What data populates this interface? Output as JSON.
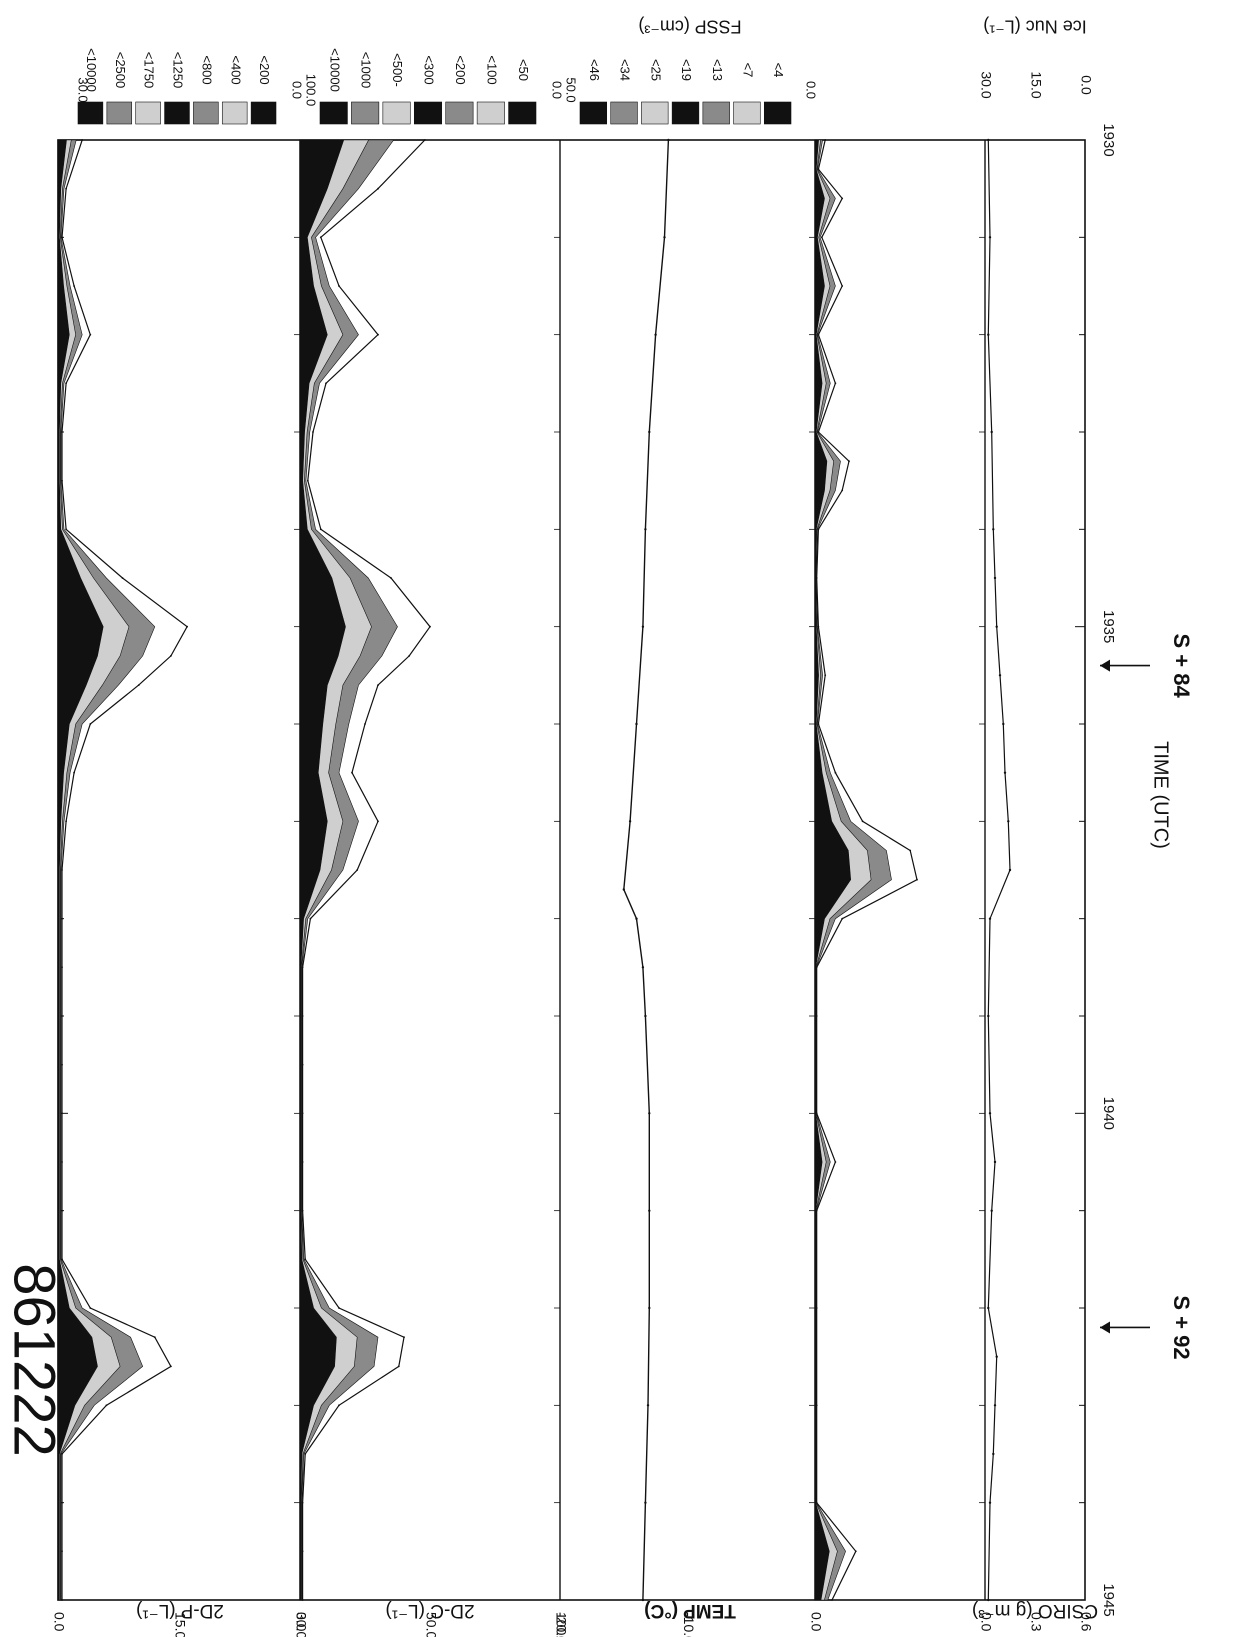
{
  "figure_id": "861222",
  "colors": {
    "ink": "#111111",
    "dark": "#111111",
    "mid": "#8a8a8a",
    "light": "#cfcfcf"
  },
  "chart_data": [
    {
      "type": "area",
      "panel": "2D-P",
      "ylabel": "2D-P (L⁻¹)",
      "ylim": [
        0,
        30
      ],
      "yticks": [
        "30.0",
        "15.0",
        "0.0"
      ],
      "legend": [
        "<10000",
        "<2500",
        "<1750",
        "<1250",
        "<800",
        "<400",
        "<200"
      ],
      "series": [
        {
          "x": [
            1930.0,
            1930.5,
            1931.0,
            1931.5,
            1932.0,
            1932.5,
            1933.0,
            1933.5,
            1934.0,
            1934.5,
            1935.0,
            1935.3,
            1935.6,
            1936.0,
            1936.5,
            1937.0,
            1937.5,
            1938.0,
            1938.5,
            1939.0,
            1939.5,
            1940.0,
            1940.5,
            1941.0,
            1941.5,
            1942.0,
            1942.3,
            1942.6,
            1943.0,
            1943.5,
            1944.0,
            1944.5,
            1945.0
          ],
          "values": [
            3,
            1,
            0.5,
            2,
            4,
            1,
            0.5,
            0.5,
            1,
            8,
            16,
            14,
            10,
            4,
            2,
            1,
            0.5,
            0.5,
            0.5,
            0.5,
            0.5,
            0.5,
            0.5,
            0.5,
            0.5,
            4,
            12,
            14,
            6,
            0.5,
            0.5,
            0.5,
            0.5
          ]
        }
      ]
    },
    {
      "type": "area",
      "panel": "2D-C",
      "ylabel": "2D-C (L⁻¹)",
      "ylim": [
        0,
        100
      ],
      "yticks": [
        "100.0",
        "50.0",
        "0.0"
      ],
      "legend": [
        "<10000",
        "<1000",
        "<500-",
        "<300",
        "<200",
        "<100",
        "<50"
      ],
      "series": [
        {
          "x": [
            1930.0,
            1930.5,
            1931.0,
            1931.5,
            1932.0,
            1932.5,
            1933.0,
            1933.5,
            1934.0,
            1934.5,
            1935.0,
            1935.3,
            1935.6,
            1936.0,
            1936.5,
            1937.0,
            1937.5,
            1938.0,
            1938.5,
            1939.0,
            1939.5,
            1940.0,
            1940.5,
            1941.0,
            1941.5,
            1942.0,
            1942.3,
            1942.6,
            1943.0,
            1943.5,
            1944.0,
            1944.5,
            1945.0
          ],
          "values": [
            48,
            30,
            8,
            15,
            30,
            10,
            5,
            3,
            8,
            35,
            50,
            42,
            30,
            25,
            20,
            30,
            22,
            4,
            1,
            1,
            1,
            1,
            1,
            1,
            2,
            15,
            40,
            38,
            15,
            2,
            1,
            1,
            1
          ]
        }
      ]
    },
    {
      "type": "line",
      "panel": "TEMP",
      "ylabel": "TEMP (°C)",
      "ylim": [
        -20,
        0
      ],
      "yticks": [
        "0.0",
        "-10.0",
        "-20.0"
      ],
      "series": [
        {
          "x": [
            1930.0,
            1931.0,
            1932.0,
            1933.0,
            1934.0,
            1935.0,
            1936.0,
            1937.0,
            1937.7,
            1938.0,
            1938.5,
            1939.0,
            1940.0,
            1941.0,
            1942.0,
            1943.0,
            1944.0,
            1945.0
          ],
          "values": [
            -11.5,
            -11.8,
            -12.5,
            -13.0,
            -13.3,
            -13.5,
            -14.0,
            -14.5,
            -15.0,
            -14.0,
            -13.5,
            -13.3,
            -13.0,
            -13.0,
            -13.0,
            -13.1,
            -13.3,
            -13.5
          ]
        }
      ]
    },
    {
      "type": "area",
      "panel": "FSSP",
      "ylabel": "FSSP (cm⁻³)",
      "ylim": [
        0,
        50
      ],
      "yticks": [
        "50.0",
        "0.0"
      ],
      "legend": [
        "<46",
        "<34",
        "<25",
        "<19",
        "<13",
        "<7",
        "<4"
      ],
      "series": [
        {
          "x": [
            1930.0,
            1930.3,
            1930.6,
            1931.0,
            1931.5,
            1932.0,
            1932.5,
            1933.0,
            1933.3,
            1933.6,
            1934.0,
            1934.5,
            1935.0,
            1935.5,
            1936.0,
            1936.5,
            1937.0,
            1937.3,
            1937.6,
            1938.0,
            1938.5,
            1939.0,
            1940.0,
            1940.5,
            1941.0,
            1942.0,
            1943.0,
            1944.0,
            1944.5,
            1945.0
          ],
          "values": [
            3,
            1,
            8,
            2,
            8,
            1,
            6,
            1,
            10,
            8,
            1,
            0.5,
            1,
            3,
            1,
            6,
            14,
            28,
            30,
            8,
            0.5,
            0.5,
            0.5,
            6,
            0.5,
            0.5,
            0.5,
            0.5,
            12,
            5
          ]
        }
      ]
    },
    {
      "type": "line",
      "panel": "CSIRO / Ice Nuc",
      "ylabel": "CSIRO (g m⁻³)",
      "ylabel_right": "Ice Nuc (L⁻¹)",
      "ylim": [
        0,
        0.6
      ],
      "yticks": [
        "0.6",
        "0.3",
        "0.0"
      ],
      "yticks_right": [
        "30.0",
        "15.0",
        "0.0"
      ],
      "xlabel": "TIME (UTC)",
      "xlim": [
        1930,
        1945
      ],
      "xticks": [
        "1930",
        "1935",
        "1940",
        "1945"
      ],
      "series": [
        {
          "x": [
            1930.0,
            1931.0,
            1932.0,
            1933.0,
            1934.0,
            1934.5,
            1935.0,
            1935.5,
            1936.0,
            1936.5,
            1937.0,
            1937.5,
            1938.0,
            1939.0,
            1940.0,
            1940.5,
            1941.0,
            1942.0,
            1942.5,
            1943.0,
            1943.5,
            1944.0,
            1945.0
          ],
          "values": [
            0.02,
            0.03,
            0.02,
            0.04,
            0.05,
            0.06,
            0.07,
            0.09,
            0.11,
            0.12,
            0.14,
            0.15,
            0.03,
            0.02,
            0.03,
            0.06,
            0.04,
            0.02,
            0.07,
            0.06,
            0.05,
            0.03,
            0.02
          ]
        }
      ],
      "annotations": [
        {
          "label": "S + 84",
          "x": 1935.4
        },
        {
          "label": "S + 92",
          "x": 1942.2
        }
      ]
    }
  ]
}
